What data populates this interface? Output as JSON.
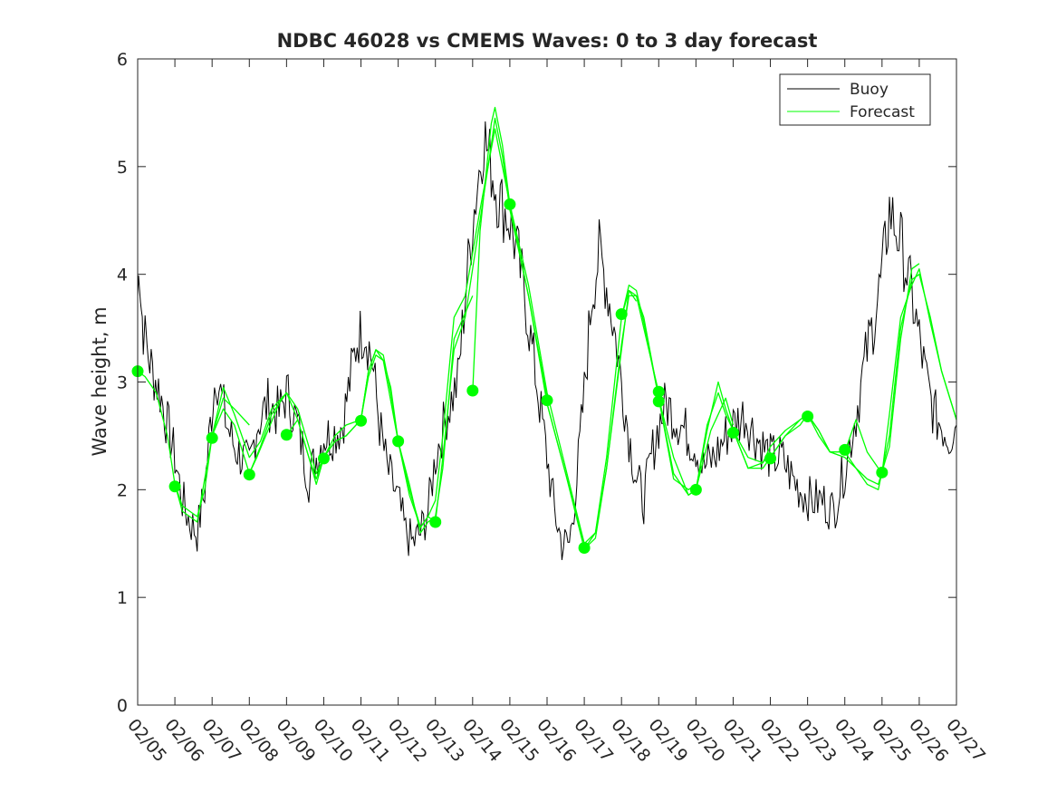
{
  "chart_data": {
    "type": "line",
    "title": "NDBC 46028 vs CMEMS Waves: 0 to 3 day forecast",
    "xlabel": "",
    "ylabel": "Wave height, m",
    "xlim": [
      "02/05",
      "02/27"
    ],
    "ylim": [
      0,
      6
    ],
    "yticks": [
      0,
      1,
      2,
      3,
      4,
      5,
      6
    ],
    "xticks": [
      "02/05",
      "02/06",
      "02/07",
      "02/08",
      "02/09",
      "02/10",
      "02/11",
      "02/12",
      "02/13",
      "02/14",
      "02/15",
      "02/16",
      "02/17",
      "02/18",
      "02/19",
      "02/20",
      "02/21",
      "02/22",
      "02/23",
      "02/24",
      "02/25",
      "02/26",
      "02/27"
    ],
    "grid": false,
    "legend": {
      "position": "top-right",
      "entries": [
        "Buoy",
        "Forecast"
      ]
    },
    "colors": {
      "buoy": "#000000",
      "forecast": "#00ff00",
      "axis": "#262626"
    },
    "buoy_key_points": {
      "x_days": [
        0.0,
        0.05,
        0.1,
        0.15,
        0.25,
        0.4,
        0.6,
        0.8,
        1.0,
        1.2,
        1.4,
        1.6,
        1.8,
        1.95,
        2.1,
        2.4,
        2.6,
        2.8,
        3.0,
        3.2,
        3.5,
        3.8,
        4.0,
        4.3,
        4.6,
        4.8,
        5.0,
        5.2,
        5.5,
        5.7,
        5.9,
        6.1,
        6.3,
        6.5,
        6.7,
        7.0,
        7.2,
        7.4,
        7.6,
        7.8,
        8.0,
        8.3,
        8.6,
        8.8,
        9.0,
        9.3,
        9.5,
        9.7,
        10.0,
        10.2,
        10.4,
        10.6,
        10.8,
        11.0,
        11.2,
        11.4,
        11.6,
        11.8,
        12.0,
        12.2,
        12.4,
        12.6,
        12.8,
        13.0,
        13.2,
        13.4,
        13.6,
        13.8,
        14.0,
        14.2,
        14.4,
        14.6,
        14.8,
        15.0,
        15.2,
        15.5,
        15.8,
        16.0,
        16.3,
        16.6,
        16.8,
        17.0,
        17.3,
        17.6,
        17.8,
        18.1,
        18.4,
        18.7,
        19.0,
        19.3,
        19.6,
        19.8,
        20.0,
        20.2,
        20.5,
        20.8,
        21.0,
        21.2,
        21.4,
        21.6,
        21.8,
        22.0
      ],
      "y": [
        3.8,
        4.1,
        3.7,
        3.5,
        3.3,
        3.1,
        2.9,
        2.6,
        2.3,
        1.9,
        1.7,
        1.6,
        2.0,
        2.6,
        3.1,
        2.6,
        2.4,
        2.3,
        2.2,
        2.6,
        2.8,
        2.7,
        2.9,
        2.6,
        2.1,
        2.3,
        2.5,
        2.5,
        2.6,
        3.0,
        3.4,
        3.5,
        3.2,
        2.6,
        2.2,
        1.9,
        1.6,
        1.5,
        1.6,
        1.8,
        2.3,
        2.7,
        3.0,
        3.8,
        4.5,
        5.3,
        5.0,
        4.7,
        4.5,
        4.2,
        3.8,
        3.3,
        2.8,
        2.3,
        1.8,
        1.5,
        1.5,
        2.1,
        2.9,
        3.8,
        4.2,
        3.9,
        3.5,
        3.0,
        2.5,
        2.1,
        1.9,
        2.3,
        2.6,
        2.8,
        2.7,
        2.6,
        2.5,
        2.4,
        2.2,
        2.3,
        2.5,
        2.6,
        2.7,
        2.5,
        2.4,
        2.3,
        2.3,
        2.1,
        2.0,
        1.9,
        1.9,
        1.8,
        2.2,
        2.7,
        3.3,
        3.6,
        4.0,
        4.6,
        4.3,
        3.8,
        3.4,
        3.0,
        2.7,
        2.6,
        2.5,
        2.6
      ]
    },
    "forecast_series": [
      {
        "x_days": [
          0.0,
          0.2,
          0.5,
          0.8,
          1.0,
          1.2,
          1.4,
          1.6,
          1.8,
          2.0,
          2.3,
          2.6,
          3.0
        ],
        "y": [
          3.1,
          3.05,
          2.9,
          2.5,
          2.05,
          1.85,
          1.8,
          1.75,
          2.0,
          2.5,
          2.85,
          2.75,
          2.6
        ]
      },
      {
        "x_days": [
          1.0,
          1.2,
          1.4,
          1.6,
          1.8,
          2.0,
          2.3,
          2.6,
          3.0,
          3.3,
          3.6,
          4.0
        ],
        "y": [
          2.05,
          1.8,
          1.75,
          1.7,
          2.1,
          2.5,
          2.95,
          2.7,
          2.3,
          2.45,
          2.75,
          2.9
        ]
      },
      {
        "x_days": [
          2.0,
          2.3,
          2.6,
          3.0,
          3.2,
          3.5,
          3.8,
          4.0,
          4.3,
          4.6,
          4.8,
          5.0
        ],
        "y": [
          2.5,
          2.75,
          2.6,
          2.15,
          2.3,
          2.55,
          2.8,
          2.9,
          2.65,
          2.3,
          2.1,
          2.3
        ]
      },
      {
        "x_days": [
          3.0,
          3.3,
          3.6,
          4.0,
          4.3,
          4.6,
          4.8,
          5.0,
          5.3,
          5.6,
          6.0
        ],
        "y": [
          2.15,
          2.4,
          2.7,
          2.9,
          2.75,
          2.4,
          2.15,
          2.3,
          2.45,
          2.5,
          2.65
        ]
      },
      {
        "x_days": [
          4.0,
          4.3,
          4.6,
          4.8,
          5.0,
          5.3,
          5.6,
          6.0,
          6.2,
          6.4,
          6.6,
          7.0
        ],
        "y": [
          2.5,
          2.65,
          2.3,
          2.05,
          2.3,
          2.5,
          2.6,
          2.65,
          3.05,
          3.25,
          3.2,
          2.45
        ]
      },
      {
        "x_days": [
          5.0,
          5.3,
          5.6,
          6.0,
          6.2,
          6.4,
          6.6,
          6.8,
          7.0,
          7.3,
          7.6,
          7.8,
          8.0
        ],
        "y": [
          2.3,
          2.45,
          2.5,
          2.65,
          3.1,
          3.3,
          3.25,
          2.9,
          2.45,
          2.0,
          1.65,
          1.75,
          1.7
        ]
      },
      {
        "x_days": [
          6.0,
          6.2,
          6.4,
          6.6,
          6.8,
          7.0,
          7.3,
          7.6,
          7.8,
          8.0,
          8.2,
          8.5,
          9.0
        ],
        "y": [
          2.65,
          3.1,
          3.3,
          3.2,
          2.95,
          2.45,
          2.05,
          1.6,
          1.7,
          1.75,
          2.2,
          3.4,
          3.8
        ]
      },
      {
        "x_days": [
          7.0,
          7.3,
          7.6,
          7.8,
          8.0,
          8.2,
          8.5,
          8.8,
          9.2,
          9.6,
          10.0
        ],
        "y": [
          2.45,
          1.95,
          1.65,
          1.75,
          1.9,
          2.5,
          3.6,
          3.8,
          4.6,
          5.35,
          4.65
        ]
      },
      {
        "x_days": [
          8.0,
          8.2,
          8.5,
          8.8,
          9.2,
          9.5,
          9.6,
          9.8,
          10.0,
          10.5,
          11.0
        ],
        "y": [
          1.7,
          2.3,
          3.3,
          3.6,
          4.5,
          5.2,
          5.45,
          5.1,
          4.6,
          3.8,
          2.85
        ]
      },
      {
        "x_days": [
          9.0,
          9.2,
          9.5,
          9.6,
          9.8,
          10.0,
          10.5,
          11.0,
          11.5,
          12.0
        ],
        "y": [
          2.9,
          4.4,
          5.4,
          5.55,
          5.2,
          4.65,
          3.9,
          2.9,
          2.2,
          1.5
        ]
      },
      {
        "x_days": [
          10.0,
          10.5,
          11.0,
          11.5,
          12.0,
          12.3,
          12.6,
          13.0,
          13.2,
          13.4
        ],
        "y": [
          4.65,
          3.8,
          2.8,
          2.15,
          1.5,
          1.6,
          2.2,
          3.3,
          3.85,
          3.75
        ]
      },
      {
        "x_days": [
          11.0,
          11.5,
          12.0,
          12.3,
          12.6,
          13.0,
          13.2,
          13.4,
          13.6,
          14.0
        ],
        "y": [
          2.8,
          2.15,
          1.45,
          1.55,
          2.2,
          3.35,
          3.8,
          3.8,
          3.5,
          2.9
        ]
      },
      {
        "x_days": [
          12.0,
          12.3,
          12.6,
          13.0,
          13.2,
          13.4,
          13.6,
          14.0,
          14.4,
          14.8,
          15.0
        ],
        "y": [
          1.45,
          1.6,
          2.3,
          3.6,
          3.9,
          3.85,
          3.55,
          2.85,
          2.1,
          2.0,
          2.05
        ]
      },
      {
        "x_days": [
          13.0,
          13.2,
          13.4,
          13.6,
          14.0,
          14.4,
          14.8,
          15.0,
          15.4,
          15.8,
          16.0
        ],
        "y": [
          3.6,
          3.85,
          3.8,
          3.6,
          2.85,
          2.15,
          1.95,
          2.0,
          2.55,
          2.85,
          2.6
        ]
      },
      {
        "x_days": [
          14.0,
          14.4,
          14.8,
          15.0,
          15.3,
          15.6,
          15.8,
          16.0,
          16.4,
          16.8,
          17.0
        ],
        "y": [
          2.85,
          2.3,
          1.95,
          2.0,
          2.6,
          2.9,
          2.7,
          2.55,
          2.3,
          2.25,
          2.35
        ]
      },
      {
        "x_days": [
          15.0,
          15.3,
          15.6,
          15.8,
          16.0,
          16.4,
          16.8,
          17.0,
          17.4,
          17.8,
          18.0
        ],
        "y": [
          2.0,
          2.55,
          3.0,
          2.75,
          2.55,
          2.2,
          2.25,
          2.4,
          2.55,
          2.65,
          2.7
        ]
      },
      {
        "x_days": [
          16.0,
          16.4,
          16.8,
          17.0,
          17.4,
          17.8,
          18.0,
          18.3,
          18.6,
          19.0
        ],
        "y": [
          2.55,
          2.2,
          2.2,
          2.3,
          2.5,
          2.6,
          2.7,
          2.55,
          2.35,
          2.3
        ]
      },
      {
        "x_days": [
          17.0,
          17.4,
          17.8,
          18.0,
          18.3,
          18.6,
          19.0,
          19.3,
          19.6,
          20.0
        ],
        "y": [
          2.3,
          2.5,
          2.65,
          2.7,
          2.55,
          2.35,
          2.35,
          2.65,
          2.35,
          2.15
        ]
      },
      {
        "x_days": [
          18.0,
          18.3,
          18.6,
          19.0,
          19.3,
          19.6,
          19.9,
          20.2,
          20.5,
          20.8,
          21.0
        ],
        "y": [
          2.7,
          2.5,
          2.35,
          2.3,
          2.2,
          2.1,
          2.05,
          2.4,
          3.4,
          4.05,
          4.1
        ]
      },
      {
        "x_days": [
          19.0,
          19.3,
          19.6,
          19.9,
          20.2,
          20.5,
          20.8,
          21.0,
          21.3,
          21.6,
          22.0
        ],
        "y": [
          2.35,
          2.2,
          2.05,
          2.0,
          2.5,
          3.5,
          3.95,
          4.0,
          3.6,
          3.1,
          2.65
        ]
      },
      {
        "x_days": [
          20.0,
          20.2,
          20.5,
          20.8,
          21.0,
          21.3,
          21.6,
          22.0
        ],
        "y": [
          2.15,
          2.7,
          3.6,
          3.9,
          4.05,
          3.55,
          3.1,
          2.65
        ]
      }
    ],
    "forecast_start_markers": {
      "x_days": [
        0,
        1,
        2,
        3,
        4,
        5,
        6,
        7,
        8,
        9,
        10,
        11,
        12,
        13,
        14,
        14,
        15,
        16,
        17,
        18,
        19,
        20
      ],
      "y": [
        3.1,
        2.03,
        2.48,
        2.14,
        2.51,
        2.29,
        2.64,
        2.45,
        1.7,
        2.92,
        4.65,
        2.83,
        1.46,
        3.63,
        2.91,
        2.82,
        2.0,
        2.53,
        2.29,
        2.68,
        2.37,
        2.16
      ]
    }
  }
}
